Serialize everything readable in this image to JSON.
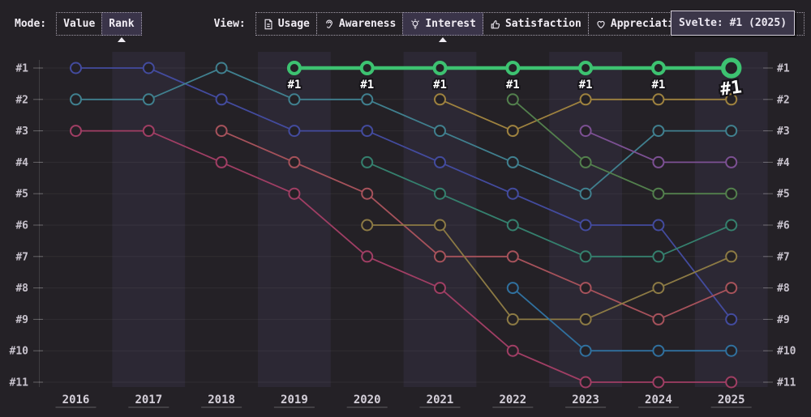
{
  "toolbar": {
    "mode_label": "Mode:",
    "view_label": "View:",
    "mode_options": [
      {
        "label": "Value",
        "selected": false
      },
      {
        "label": "Rank",
        "selected": true
      }
    ],
    "view_options": [
      {
        "label": "Usage",
        "icon": "document-icon",
        "selected": false
      },
      {
        "label": "Awareness",
        "icon": "ear-icon",
        "selected": false
      },
      {
        "label": "Interest",
        "icon": "lightbulb-icon",
        "selected": true
      },
      {
        "label": "Satisfaction",
        "icon": "thumbs-up-icon",
        "selected": false
      },
      {
        "label": "Appreciation",
        "icon": "heart-icon",
        "selected": false
      }
    ]
  },
  "tooltip": {
    "text": "Svelte: #1 (2025)"
  },
  "colors": {
    "background": "#242126",
    "band": "#2c2834",
    "axis_label": "#c8c3cd",
    "year_label": "#d5d0da",
    "highlight_green": "#3dc271",
    "tooltip_bg": "#3b3649",
    "tooltip_border": "#d3cdd9",
    "selected_button_bg": "#3a3449"
  },
  "chart_data": {
    "type": "line",
    "subtype": "bump-rank-chart",
    "title": "",
    "mode": "Rank",
    "view": "Interest",
    "years": [
      2016,
      2017,
      2018,
      2019,
      2020,
      2021,
      2022,
      2023,
      2024,
      2025
    ],
    "rank_axis_labels": [
      "#1",
      "#2",
      "#3",
      "#4",
      "#5",
      "#6",
      "#7",
      "#8",
      "#9",
      "#10",
      "#11"
    ],
    "rank_axis_sides": [
      "left",
      "right"
    ],
    "grid": true,
    "banded_columns": "odd-years",
    "highlighted_series": "Svelte",
    "highlight_point_label": "#1",
    "series": [
      {
        "name": "series-blue",
        "color": "#434b9e",
        "highlight": false,
        "ranks": [
          1,
          1,
          2,
          3,
          3,
          4,
          5,
          6,
          6,
          9
        ]
      },
      {
        "name": "series-teal",
        "color": "#40808f",
        "highlight": false,
        "ranks": [
          2,
          2,
          1,
          2,
          2,
          3,
          4,
          5,
          3,
          3
        ]
      },
      {
        "name": "series-magenta",
        "color": "#a03e64",
        "highlight": false,
        "ranks": [
          3,
          3,
          4,
          5,
          7,
          8,
          10,
          11,
          11,
          11
        ]
      },
      {
        "name": "series-brick",
        "color": "#a6525b",
        "highlight": false,
        "ranks": [
          null,
          null,
          3,
          4,
          5,
          7,
          7,
          8,
          9,
          8
        ]
      },
      {
        "name": "series-seagreen",
        "color": "#35806e",
        "highlight": false,
        "ranks": [
          null,
          null,
          null,
          null,
          4,
          5,
          6,
          7,
          7,
          6
        ]
      },
      {
        "name": "series-gold",
        "color": "#9e823f",
        "highlight": false,
        "ranks": [
          null,
          null,
          null,
          null,
          null,
          2,
          3,
          2,
          2,
          2
        ]
      },
      {
        "name": "series-olive",
        "color": "#8c7a44",
        "highlight": false,
        "ranks": [
          null,
          null,
          null,
          null,
          6,
          6,
          9,
          9,
          8,
          7
        ]
      },
      {
        "name": "series-forest",
        "color": "#53804d",
        "highlight": false,
        "ranks": [
          null,
          null,
          null,
          null,
          null,
          null,
          2,
          4,
          5,
          5
        ]
      },
      {
        "name": "series-steel",
        "color": "#30709e",
        "highlight": false,
        "ranks": [
          null,
          null,
          null,
          null,
          null,
          null,
          8,
          10,
          10,
          10
        ]
      },
      {
        "name": "series-purple",
        "color": "#7c5093",
        "highlight": false,
        "ranks": [
          null,
          null,
          null,
          null,
          null,
          null,
          null,
          3,
          4,
          4
        ]
      },
      {
        "name": "Svelte",
        "color": "#3dc271",
        "highlight": true,
        "ranks": [
          null,
          null,
          null,
          1,
          1,
          1,
          1,
          1,
          1,
          1
        ]
      }
    ]
  }
}
